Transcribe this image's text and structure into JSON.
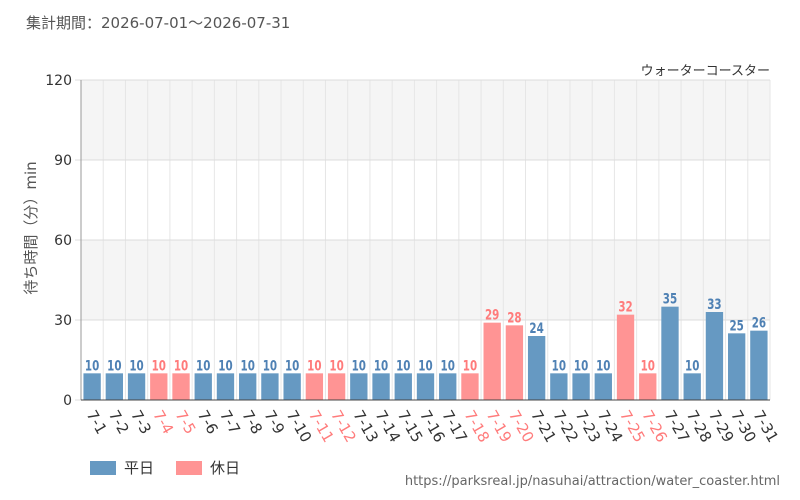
{
  "header": {
    "period_label": "集計期間：2026-07-01～2026-07-31"
  },
  "footer": {
    "source_url": "https://parksreal.jp/nasuhai/attraction/water_coaster.html"
  },
  "legend": {
    "weekday_label": "平日",
    "holiday_label": "休日"
  },
  "colors": {
    "weekday": "#6699c2",
    "holiday": "#ff9494",
    "weekday_text": "#4f81b4",
    "holiday_text": "#ff7b7b"
  },
  "chart_data": {
    "type": "bar",
    "title": "ウォーターコースター",
    "ylabel": "待ち時間（分）min",
    "xlabel": "",
    "ylim": [
      0,
      120
    ],
    "yticks": [
      "0",
      "30",
      "60",
      "90",
      "120"
    ],
    "grid": true,
    "legend_position": "bottom-left",
    "categories": [
      "7-1",
      "7-2",
      "7-3",
      "7-4",
      "7-5",
      "7-6",
      "7-7",
      "7-8",
      "7-9",
      "7-10",
      "7-11",
      "7-12",
      "7-13",
      "7-14",
      "7-15",
      "7-16",
      "7-17",
      "7-18",
      "7-19",
      "7-20",
      "7-21",
      "7-22",
      "7-23",
      "7-24",
      "7-25",
      "7-26",
      "7-27",
      "7-28",
      "7-29",
      "7-30",
      "7-31"
    ],
    "values": [
      10,
      10,
      10,
      10,
      10,
      10,
      10,
      10,
      10,
      10,
      10,
      10,
      10,
      10,
      10,
      10,
      10,
      10,
      29,
      28,
      24,
      10,
      10,
      10,
      32,
      10,
      35,
      10,
      33,
      25,
      26
    ],
    "day_type": [
      "平日",
      "平日",
      "平日",
      "休日",
      "休日",
      "平日",
      "平日",
      "平日",
      "平日",
      "平日",
      "休日",
      "休日",
      "平日",
      "平日",
      "平日",
      "平日",
      "平日",
      "休日",
      "休日",
      "休日",
      "平日",
      "平日",
      "平日",
      "平日",
      "休日",
      "休日",
      "平日",
      "平日",
      "平日",
      "平日",
      "平日"
    ]
  }
}
